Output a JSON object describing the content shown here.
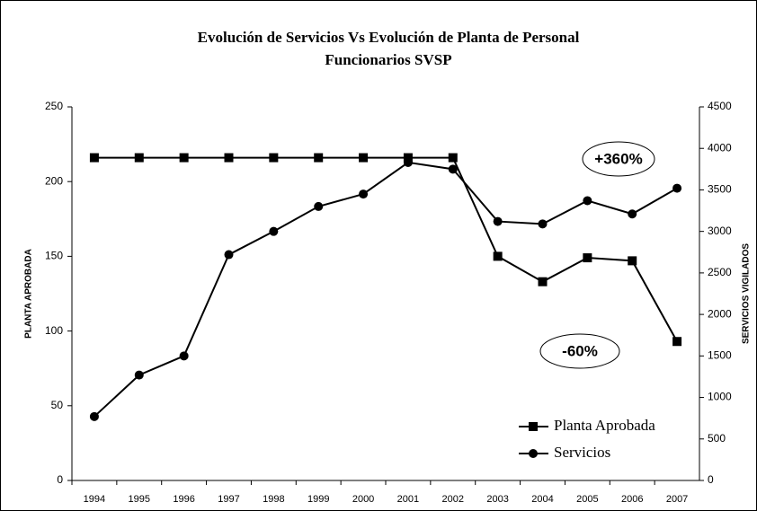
{
  "chart_data": {
    "type": "line",
    "title": [
      "Evolución de Servicios Vs Evolución de Planta de Personal",
      "Funcionarios SVSP"
    ],
    "ylabel": "PLANTA APROBADA",
    "y2label": "SERVICIOS VIGILADOS",
    "categories": [
      "1994",
      "1995",
      "1996",
      "1997",
      "1998",
      "1999",
      "2000",
      "2001",
      "2002",
      "2003",
      "2004",
      "2005",
      "2006",
      "2007"
    ],
    "series": [
      {
        "name": "Planta Aprobada",
        "color": "#000000",
        "marker": "square",
        "axis": "y",
        "values": [
          216,
          216,
          216,
          216,
          216,
          216,
          216,
          216,
          216,
          150,
          133,
          149,
          147,
          93
        ]
      },
      {
        "name": "Servicios",
        "color": "#000000",
        "marker": "circle",
        "axis": "y2",
        "values": [
          770,
          1270,
          1500,
          2720,
          3000,
          3300,
          3450,
          3830,
          3750,
          3120,
          3090,
          3370,
          3210,
          3520
        ]
      }
    ],
    "ylim": [
      0,
      250
    ],
    "yticks": [
      0,
      50,
      100,
      150,
      200,
      250
    ],
    "y2lim": [
      0,
      4500
    ],
    "y2ticks": [
      0,
      500,
      1000,
      1500,
      2000,
      2500,
      3000,
      3500,
      4000,
      4500
    ],
    "annotations": [
      "+360%",
      "-60%"
    ],
    "legend": "lower right",
    "grid": false
  }
}
